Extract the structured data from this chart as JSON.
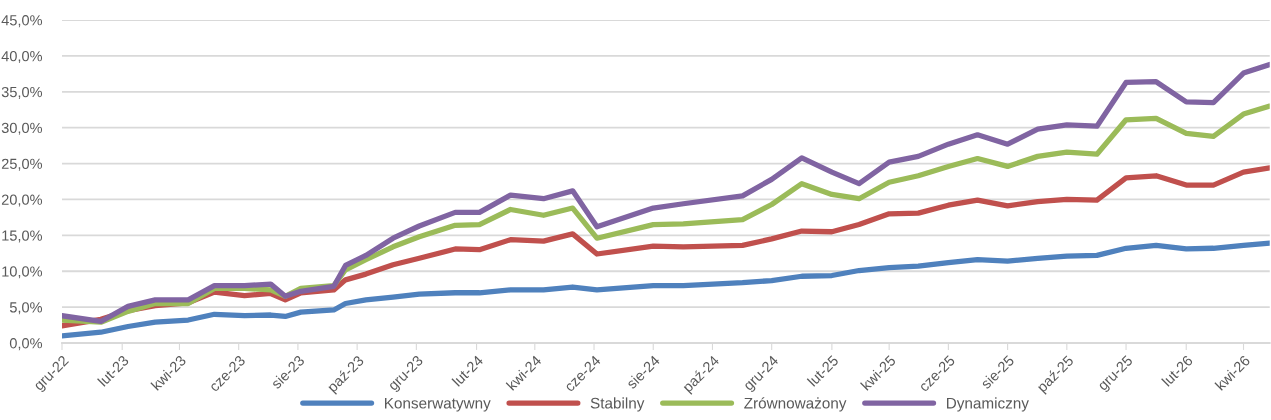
{
  "chart_data": {
    "type": "line",
    "x": [
      "2022-12-01",
      "2023-01-10",
      "2023-02-07",
      "2023-03-07",
      "2023-04-10",
      "2023-05-07",
      "2023-06-07",
      "2023-07-04",
      "2023-07-19",
      "2023-08-04",
      "2023-09-07",
      "2023-09-19",
      "2023-10-10",
      "2023-11-07",
      "2023-12-04",
      "2024-01-10",
      "2024-02-04",
      "2024-03-07",
      "2024-04-10",
      "2024-05-10",
      "2024-06-04",
      "2024-08-01",
      "2024-09-01",
      "2024-11-01",
      "2024-12-01",
      "2025-01-01",
      "2025-02-01",
      "2025-03-01",
      "2025-04-01",
      "2025-05-01",
      "2025-06-01",
      "2025-07-01",
      "2025-08-01",
      "2025-09-01",
      "2025-10-01",
      "2025-11-01",
      "2025-12-01",
      "2026-01-01",
      "2026-02-01",
      "2026-03-01",
      "2026-04-01",
      "2026-04-28"
    ],
    "series": [
      {
        "name": "Konserwatywny",
        "color": "#4f81bd",
        "values": [
          1.0,
          1.5,
          2.3,
          2.9,
          3.2,
          4.0,
          3.8,
          3.9,
          3.7,
          4.3,
          4.6,
          5.5,
          6.0,
          6.4,
          6.8,
          7.0,
          7.0,
          7.4,
          7.4,
          7.8,
          7.4,
          8.0,
          8.0,
          8.4,
          8.7,
          9.3,
          9.4,
          10.1,
          10.5,
          10.7,
          11.2,
          11.6,
          11.4,
          11.8,
          12.1,
          12.2,
          13.2,
          13.6,
          13.1,
          13.2,
          13.6,
          13.9
        ]
      },
      {
        "name": "Stabilny",
        "color": "#c0504d",
        "values": [
          2.4,
          3.3,
          4.5,
          5.2,
          5.6,
          7.1,
          6.6,
          6.9,
          6.0,
          7.0,
          7.4,
          8.8,
          9.6,
          10.9,
          11.8,
          13.1,
          13.0,
          14.4,
          14.2,
          15.2,
          12.4,
          13.5,
          13.4,
          13.6,
          14.5,
          15.6,
          15.5,
          16.5,
          18.0,
          18.1,
          19.2,
          19.9,
          19.1,
          19.7,
          20.0,
          19.9,
          23.0,
          23.3,
          22.0,
          22.0,
          23.8,
          24.4
        ]
      },
      {
        "name": "Zrównoważony",
        "color": "#9bbb59",
        "values": [
          3.2,
          2.9,
          4.4,
          5.5,
          5.5,
          7.6,
          7.6,
          7.4,
          6.5,
          7.6,
          8.0,
          10.2,
          11.6,
          13.4,
          14.8,
          16.4,
          16.5,
          18.6,
          17.8,
          18.8,
          14.6,
          16.5,
          16.6,
          17.2,
          19.3,
          22.2,
          20.7,
          20.1,
          22.4,
          23.3,
          24.6,
          25.7,
          24.6,
          26.0,
          26.6,
          26.3,
          31.1,
          31.3,
          29.2,
          28.8,
          31.9,
          33.0
        ]
      },
      {
        "name": "Dynamiczny",
        "color": "#8064a2",
        "values": [
          3.8,
          3.0,
          5.1,
          6.0,
          6.0,
          8.0,
          8.0,
          8.2,
          6.5,
          7.2,
          7.9,
          10.8,
          12.2,
          14.6,
          16.3,
          18.2,
          18.2,
          20.6,
          20.1,
          21.2,
          16.2,
          18.8,
          19.4,
          20.5,
          22.8,
          25.8,
          23.8,
          22.2,
          25.2,
          26.0,
          27.7,
          29.0,
          27.7,
          29.8,
          30.4,
          30.2,
          36.3,
          36.4,
          33.6,
          33.5,
          37.6,
          38.8
        ]
      }
    ],
    "xlim": [
      "2022-12-01",
      "2026-04-28"
    ],
    "xticks": [
      {
        "value": "2022-12",
        "label": "gru-22"
      },
      {
        "value": "2023-02",
        "label": "lut-23"
      },
      {
        "value": "2023-04",
        "label": "kwi-23"
      },
      {
        "value": "2023-06",
        "label": "cze-23"
      },
      {
        "value": "2023-08",
        "label": "sie-23"
      },
      {
        "value": "2023-10",
        "label": "paź-23"
      },
      {
        "value": "2023-12",
        "label": "gru-23"
      },
      {
        "value": "2024-02",
        "label": "lut-24"
      },
      {
        "value": "2024-04",
        "label": "kwi-24"
      },
      {
        "value": "2024-06",
        "label": "cze-24"
      },
      {
        "value": "2024-08",
        "label": "sie-24"
      },
      {
        "value": "2024-10",
        "label": "paź-24"
      },
      {
        "value": "2024-12",
        "label": "gru-24"
      },
      {
        "value": "2025-02",
        "label": "lut-25"
      },
      {
        "value": "2025-04",
        "label": "kwi-25"
      },
      {
        "value": "2025-06",
        "label": "cze-25"
      },
      {
        "value": "2025-08",
        "label": "sie-25"
      },
      {
        "value": "2025-10",
        "label": "paź-25"
      },
      {
        "value": "2025-12",
        "label": "gru-25"
      },
      {
        "value": "2026-02",
        "label": "lut-26"
      },
      {
        "value": "2026-04",
        "label": "kwi-26"
      }
    ],
    "ylim": [
      0,
      45
    ],
    "yticks": [
      {
        "value": 0,
        "label": "0,0%"
      },
      {
        "value": 5,
        "label": "5,0%"
      },
      {
        "value": 10,
        "label": "10,0%"
      },
      {
        "value": 15,
        "label": "15,0%"
      },
      {
        "value": 20,
        "label": "20,0%"
      },
      {
        "value": 25,
        "label": "25,0%"
      },
      {
        "value": 30,
        "label": "30,0%"
      },
      {
        "value": 35,
        "label": "35,0%"
      },
      {
        "value": 40,
        "label": "40,0%"
      },
      {
        "value": 45,
        "label": "45,0%"
      }
    ],
    "grid": "y",
    "legend": "bottom",
    "marker": "none",
    "line_style": "solid"
  }
}
